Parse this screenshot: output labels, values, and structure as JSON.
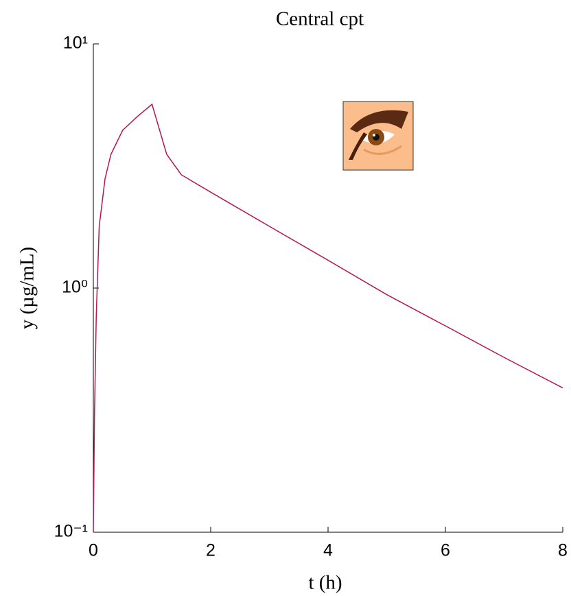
{
  "chart_data": {
    "type": "line",
    "title": "Central cpt",
    "x_label": "t (h)",
    "y_label": "y (µg/mL)",
    "y_scale": "log",
    "grid": false,
    "xlim": [
      0,
      8
    ],
    "xticks": [
      0,
      2,
      4,
      6,
      8
    ],
    "ylim": [
      0.1,
      10
    ],
    "yticks": [
      {
        "value": 0.1,
        "label": "10⁻¹"
      },
      {
        "value": 1,
        "label": "10⁰"
      },
      {
        "value": 10,
        "label": "10¹"
      }
    ],
    "x": [
      0,
      0.02,
      0.05,
      0.1,
      0.2,
      0.3,
      0.5,
      0.75,
      1,
      1.25,
      1.5,
      2,
      3,
      4,
      5,
      6,
      7,
      8
    ],
    "series": [
      {
        "name": "Central cpt",
        "color": "#b5174f",
        "values": [
          0.1,
          0.31,
          0.77,
          1.79,
          2.81,
          3.53,
          4.43,
          5.04,
          5.66,
          3.53,
          2.91,
          2.47,
          1.79,
          1.3,
          0.94,
          0.7,
          0.52,
          0.39
        ]
      }
    ]
  }
}
